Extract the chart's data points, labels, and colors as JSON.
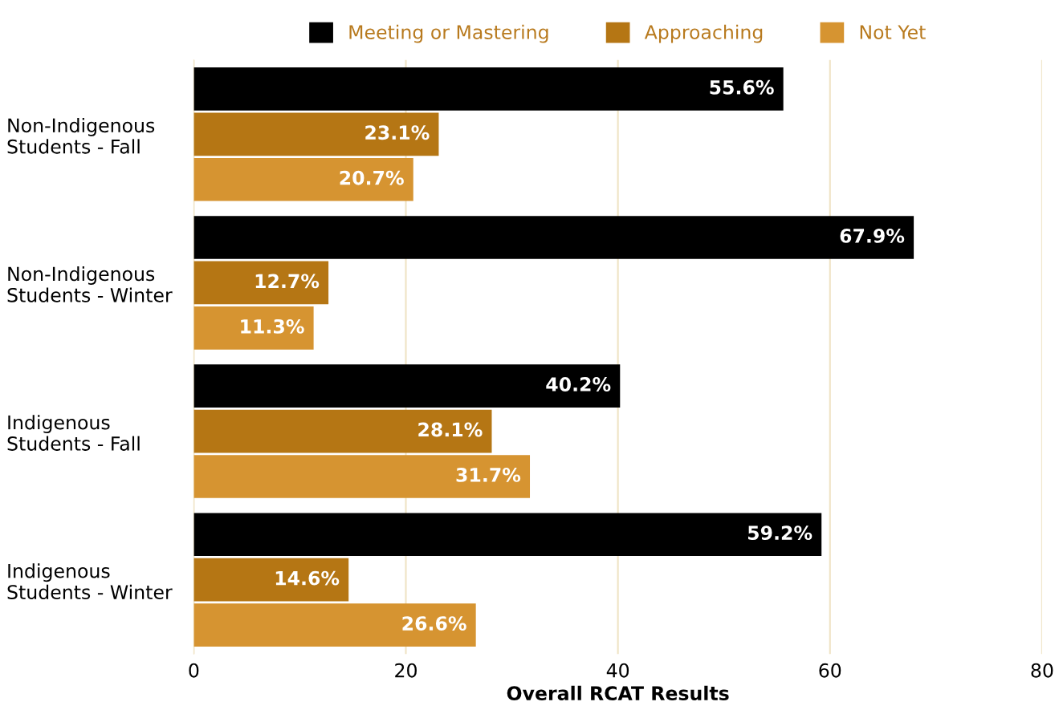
{
  "chart_data": {
    "type": "bar",
    "orientation": "horizontal",
    "xlabel": "Overall RCAT Results",
    "categories": [
      "Non-Indigenous\nStudents - Fall",
      "Non-Indigenous\nStudents - Winter",
      "Indigenous\nStudents - Fall",
      "Indigenous\nStudents - Winter"
    ],
    "series": [
      {
        "name": "Meeting or Mastering",
        "color": "#000000",
        "values": [
          55.6,
          67.9,
          40.2,
          59.2
        ],
        "value_labels": [
          "55.6%",
          "67.9%",
          "40.2%",
          "59.2%"
        ]
      },
      {
        "name": "Approaching",
        "color": "#b57614",
        "values": [
          23.1,
          12.7,
          28.1,
          14.6
        ],
        "value_labels": [
          "23.1%",
          "12.7%",
          "28.1%",
          "14.6%"
        ]
      },
      {
        "name": "Not Yet",
        "color": "#d69431",
        "values": [
          20.7,
          11.3,
          31.7,
          26.6
        ],
        "value_labels": [
          "20.7%",
          "11.3%",
          "31.7%",
          "26.6%"
        ]
      }
    ],
    "xlim": [
      0,
      80
    ],
    "xticks": [
      0,
      20,
      40,
      60,
      80
    ],
    "grid": "x",
    "legend": "top"
  }
}
